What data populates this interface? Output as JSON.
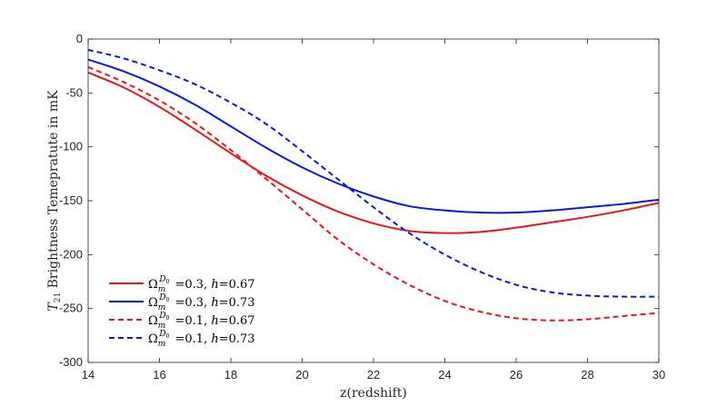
{
  "chart_data": {
    "type": "line",
    "title": "",
    "xlabel": "z(redshift)",
    "ylabel_symbol": "T",
    "ylabel_subscript": "21",
    "ylabel_rest": " Brightness Temepratute in mK",
    "xlim": [
      14,
      30
    ],
    "ylim": [
      -300,
      0
    ],
    "xticks": [
      14,
      16,
      18,
      20,
      22,
      24,
      26,
      28,
      30
    ],
    "yticks": [
      0,
      -50,
      -100,
      -150,
      -200,
      -250,
      -300
    ],
    "legend_position": "bottom-left",
    "series": [
      {
        "name": "Ω_m^{D_0} =0.3, h=0.67",
        "omega_value": "=0.3, ",
        "h_value": "=0.67",
        "color": "#e8161b",
        "style": "solid",
        "x": [
          14,
          15,
          16,
          17,
          18,
          19,
          20,
          21,
          22,
          23,
          24,
          25,
          26,
          27,
          28,
          29,
          30
        ],
        "y": [
          -31,
          -45,
          -63,
          -84,
          -106,
          -127,
          -145,
          -160,
          -171,
          -178,
          -180,
          -179,
          -175,
          -170,
          -165,
          -159,
          -152
        ]
      },
      {
        "name": "Ω_m^{D_0} =0.3, h=0.73",
        "omega_value": "=0.3, ",
        "h_value": "=0.73",
        "color": "#0a1adc",
        "style": "solid",
        "x": [
          14,
          15,
          16,
          17,
          18,
          19,
          20,
          21,
          22,
          23,
          24,
          25,
          26,
          27,
          28,
          29,
          30
        ],
        "y": [
          -19,
          -30,
          -44,
          -61,
          -81,
          -101,
          -119,
          -134,
          -146,
          -155,
          -159,
          -161,
          -161,
          -159,
          -156,
          -153,
          -149
        ]
      },
      {
        "name": "Ω_m^{D_0} =0.1, h=0.67",
        "omega_value": "=0.1, ",
        "h_value": "=0.67",
        "color": "#e8161b",
        "style": "dashed",
        "x": [
          14,
          15,
          16,
          17,
          18,
          19,
          20,
          21,
          22,
          23,
          24,
          25,
          26,
          27,
          28,
          29,
          30
        ],
        "y": [
          -26,
          -40,
          -57,
          -78,
          -103,
          -130,
          -158,
          -186,
          -209,
          -228,
          -243,
          -253,
          -259,
          -261,
          -260,
          -257,
          -254
        ]
      },
      {
        "name": "Ω_m^{D_0} =0.1, h=0.73",
        "omega_value": "=0.1, ",
        "h_value": "=0.73",
        "color": "#0a1adc",
        "style": "dashed",
        "x": [
          14,
          15,
          16,
          17,
          18,
          19,
          20,
          21,
          22,
          23,
          24,
          25,
          26,
          27,
          28,
          29,
          30
        ],
        "y": [
          -10,
          -18,
          -29,
          -42,
          -59,
          -79,
          -104,
          -130,
          -156,
          -180,
          -200,
          -216,
          -228,
          -235,
          -238,
          -239,
          -239
        ]
      }
    ]
  }
}
